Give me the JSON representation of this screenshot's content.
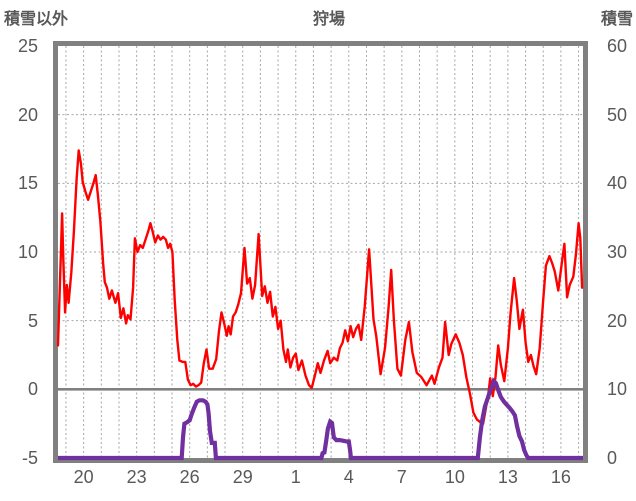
{
  "header": {
    "left_axis_title": "積雪以外",
    "chart_title": "狩場",
    "right_axis_title": "積雪"
  },
  "colors": {
    "temperature_line": "#FF0000",
    "snow_line": "#7030A0",
    "frame": "#808080",
    "zero_line": "#808080",
    "gridline": "#A6A6A6",
    "label_text": "#595959",
    "background": "#FFFFFF"
  },
  "chart_data": {
    "type": "line",
    "title": "狩場",
    "left_axis": {
      "label": "積雪以外",
      "min": -5,
      "max": 25,
      "tick_step": 5,
      "ticks": [
        "25",
        "20",
        "15",
        "10",
        "5",
        "0",
        "-5"
      ],
      "tick_values": [
        25,
        20,
        15,
        10,
        5,
        0,
        -5
      ]
    },
    "right_axis": {
      "label": "積雪",
      "min": 0,
      "max": 60,
      "tick_step": 10,
      "ticks": [
        "60",
        "50",
        "40",
        "30",
        "20",
        "10",
        "0"
      ],
      "tick_values": [
        60,
        50,
        40,
        30,
        20,
        10,
        0
      ]
    },
    "x_axis": {
      "day_start": 18.55,
      "day_end": 48.25,
      "gridline_every_days": 1,
      "tick_labels": [
        "20",
        "23",
        "26",
        "29",
        "1",
        "4",
        "7",
        "10",
        "13",
        "16"
      ],
      "tick_day_positions": [
        20,
        23,
        26,
        29,
        32,
        35,
        38,
        41,
        44,
        47
      ]
    },
    "grid": {
      "vertical": true,
      "horizontal": true,
      "style": "dashed"
    },
    "zero_line_left_value": 0,
    "series": [
      {
        "name": "積雪以外",
        "axis": "left",
        "color": "#FF0000",
        "stroke_width": 2.4,
        "points": [
          [
            18.55,
            3.2
          ],
          [
            18.62,
            6.0
          ],
          [
            18.7,
            9.5
          ],
          [
            18.78,
            12.8
          ],
          [
            18.85,
            9.5
          ],
          [
            18.95,
            5.6
          ],
          [
            19.05,
            7.6
          ],
          [
            19.15,
            6.3
          ],
          [
            19.3,
            8.5
          ],
          [
            19.45,
            11.5
          ],
          [
            19.6,
            15.3
          ],
          [
            19.72,
            17.4
          ],
          [
            19.85,
            16.4
          ],
          [
            19.95,
            15.1
          ],
          [
            20.1,
            14.4
          ],
          [
            20.25,
            13.8
          ],
          [
            20.4,
            14.4
          ],
          [
            20.55,
            15.0
          ],
          [
            20.68,
            15.6
          ],
          [
            20.8,
            14.2
          ],
          [
            20.95,
            12.2
          ],
          [
            21.1,
            9.2
          ],
          [
            21.2,
            7.8
          ],
          [
            21.32,
            7.4
          ],
          [
            21.45,
            6.6
          ],
          [
            21.6,
            7.2
          ],
          [
            21.8,
            6.3
          ],
          [
            21.95,
            7.0
          ],
          [
            22.1,
            5.2
          ],
          [
            22.25,
            5.9
          ],
          [
            22.4,
            4.8
          ],
          [
            22.5,
            5.4
          ],
          [
            22.65,
            5.1
          ],
          [
            22.8,
            7.4
          ],
          [
            22.9,
            11.0
          ],
          [
            23.05,
            10.0
          ],
          [
            23.2,
            10.5
          ],
          [
            23.35,
            10.3
          ],
          [
            23.5,
            10.9
          ],
          [
            23.65,
            11.5
          ],
          [
            23.78,
            12.1
          ],
          [
            23.9,
            11.5
          ],
          [
            24.05,
            10.7
          ],
          [
            24.2,
            11.2
          ],
          [
            24.35,
            10.9
          ],
          [
            24.5,
            11.1
          ],
          [
            24.65,
            10.9
          ],
          [
            24.78,
            10.3
          ],
          [
            24.9,
            10.6
          ],
          [
            25.02,
            10.0
          ],
          [
            25.15,
            6.5
          ],
          [
            25.3,
            3.6
          ],
          [
            25.42,
            2.1
          ],
          [
            25.6,
            2.0
          ],
          [
            25.75,
            2.0
          ],
          [
            25.9,
            0.7
          ],
          [
            26.05,
            0.3
          ],
          [
            26.2,
            0.4
          ],
          [
            26.35,
            0.2
          ],
          [
            26.5,
            0.3
          ],
          [
            26.65,
            0.5
          ],
          [
            26.8,
            1.9
          ],
          [
            26.95,
            2.9
          ],
          [
            27.1,
            1.5
          ],
          [
            27.3,
            1.5
          ],
          [
            27.5,
            2.2
          ],
          [
            27.65,
            4.2
          ],
          [
            27.8,
            5.6
          ],
          [
            27.95,
            4.8
          ],
          [
            28.1,
            3.9
          ],
          [
            28.2,
            4.6
          ],
          [
            28.32,
            4.0
          ],
          [
            28.45,
            5.3
          ],
          [
            28.6,
            5.6
          ],
          [
            28.75,
            6.2
          ],
          [
            28.9,
            7.0
          ],
          [
            29.1,
            10.3
          ],
          [
            29.25,
            7.7
          ],
          [
            29.4,
            8.1
          ],
          [
            29.55,
            6.6
          ],
          [
            29.7,
            7.6
          ],
          [
            29.9,
            11.3
          ],
          [
            30.1,
            6.8
          ],
          [
            30.25,
            7.5
          ],
          [
            30.4,
            6.3
          ],
          [
            30.55,
            7.1
          ],
          [
            30.7,
            5.3
          ],
          [
            30.85,
            6.0
          ],
          [
            31.0,
            4.4
          ],
          [
            31.15,
            5.0
          ],
          [
            31.3,
            2.9
          ],
          [
            31.45,
            2.0
          ],
          [
            31.55,
            2.9
          ],
          [
            31.7,
            1.6
          ],
          [
            31.85,
            2.3
          ],
          [
            32.0,
            2.6
          ],
          [
            32.15,
            1.4
          ],
          [
            32.35,
            2.1
          ],
          [
            32.55,
            1.0
          ],
          [
            32.75,
            0.3
          ],
          [
            32.9,
            0.1
          ],
          [
            33.1,
            1.1
          ],
          [
            33.25,
            1.9
          ],
          [
            33.4,
            1.2
          ],
          [
            33.6,
            2.1
          ],
          [
            33.8,
            2.8
          ],
          [
            33.95,
            1.9
          ],
          [
            34.15,
            2.3
          ],
          [
            34.35,
            2.1
          ],
          [
            34.5,
            3.0
          ],
          [
            34.65,
            3.4
          ],
          [
            34.8,
            4.3
          ],
          [
            34.95,
            3.5
          ],
          [
            35.1,
            4.6
          ],
          [
            35.25,
            3.8
          ],
          [
            35.4,
            4.4
          ],
          [
            35.55,
            4.7
          ],
          [
            35.7,
            3.6
          ],
          [
            35.9,
            6.0
          ],
          [
            36.15,
            10.2
          ],
          [
            36.4,
            5.1
          ],
          [
            36.55,
            3.9
          ],
          [
            36.8,
            1.1
          ],
          [
            37.05,
            3.0
          ],
          [
            37.25,
            6.0
          ],
          [
            37.4,
            8.7
          ],
          [
            37.55,
            5.0
          ],
          [
            37.75,
            1.5
          ],
          [
            37.95,
            1.0
          ],
          [
            38.2,
            3.6
          ],
          [
            38.4,
            4.9
          ],
          [
            38.6,
            2.7
          ],
          [
            38.85,
            1.2
          ],
          [
            39.1,
            0.9
          ],
          [
            39.4,
            0.3
          ],
          [
            39.7,
            1.0
          ],
          [
            39.85,
            0.4
          ],
          [
            40.1,
            1.6
          ],
          [
            40.3,
            2.3
          ],
          [
            40.45,
            4.9
          ],
          [
            40.65,
            2.5
          ],
          [
            40.8,
            3.3
          ],
          [
            41.05,
            4.0
          ],
          [
            41.25,
            3.4
          ],
          [
            41.45,
            2.5
          ],
          [
            41.65,
            0.9
          ],
          [
            41.85,
            -0.3
          ],
          [
            42.05,
            -1.7
          ],
          [
            42.25,
            -2.2
          ],
          [
            42.45,
            -2.4
          ],
          [
            42.6,
            -2.5
          ],
          [
            42.75,
            -1.4
          ],
          [
            42.9,
            -0.3
          ],
          [
            43.0,
            0.8
          ],
          [
            43.15,
            -0.5
          ],
          [
            43.3,
            0.9
          ],
          [
            43.45,
            3.2
          ],
          [
            43.6,
            1.8
          ],
          [
            43.8,
            0.6
          ],
          [
            44.0,
            3.0
          ],
          [
            44.15,
            5.5
          ],
          [
            44.35,
            8.1
          ],
          [
            44.5,
            6.5
          ],
          [
            44.65,
            4.4
          ],
          [
            44.85,
            5.8
          ],
          [
            45.0,
            3.4
          ],
          [
            45.15,
            2.0
          ],
          [
            45.3,
            2.5
          ],
          [
            45.45,
            1.7
          ],
          [
            45.6,
            1.1
          ],
          [
            45.8,
            3.0
          ],
          [
            46.0,
            6.5
          ],
          [
            46.15,
            9.0
          ],
          [
            46.35,
            9.7
          ],
          [
            46.5,
            9.2
          ],
          [
            46.65,
            8.6
          ],
          [
            46.85,
            7.2
          ],
          [
            47.05,
            9.2
          ],
          [
            47.2,
            10.6
          ],
          [
            47.35,
            6.7
          ],
          [
            47.5,
            7.6
          ],
          [
            47.7,
            8.2
          ],
          [
            47.85,
            9.8
          ],
          [
            48.0,
            12.1
          ],
          [
            48.1,
            11.0
          ],
          [
            48.2,
            7.4
          ]
        ]
      },
      {
        "name": "積雪",
        "axis": "right",
        "color": "#7030A0",
        "stroke_width": 4.2,
        "points": [
          [
            18.55,
            0
          ],
          [
            25.55,
            0
          ],
          [
            25.62,
            3.0
          ],
          [
            25.7,
            5.0
          ],
          [
            25.85,
            5.2
          ],
          [
            26.0,
            5.5
          ],
          [
            26.1,
            6.3
          ],
          [
            26.25,
            7.3
          ],
          [
            26.4,
            8.2
          ],
          [
            26.55,
            8.4
          ],
          [
            26.75,
            8.4
          ],
          [
            26.9,
            8.2
          ],
          [
            27.0,
            7.8
          ],
          [
            27.07,
            6.5
          ],
          [
            27.15,
            3.9
          ],
          [
            27.25,
            2.2
          ],
          [
            27.42,
            2.2
          ],
          [
            27.48,
            0
          ],
          [
            33.45,
            0
          ],
          [
            33.52,
            0.7
          ],
          [
            33.62,
            0.8
          ],
          [
            33.72,
            2.5
          ],
          [
            33.82,
            4.3
          ],
          [
            33.95,
            5.3
          ],
          [
            34.05,
            5.1
          ],
          [
            34.15,
            3.0
          ],
          [
            34.3,
            2.6
          ],
          [
            34.5,
            2.6
          ],
          [
            34.7,
            2.5
          ],
          [
            34.9,
            2.4
          ],
          [
            35.0,
            2.4
          ],
          [
            35.08,
            1.0
          ],
          [
            35.12,
            0
          ],
          [
            42.3,
            0
          ],
          [
            42.42,
            3.0
          ],
          [
            42.55,
            5.5
          ],
          [
            42.7,
            7.5
          ],
          [
            42.85,
            8.6
          ],
          [
            43.0,
            9.8
          ],
          [
            43.1,
            10.4
          ],
          [
            43.2,
            11.2
          ],
          [
            43.32,
            10.9
          ],
          [
            43.45,
            9.9
          ],
          [
            43.6,
            8.9
          ],
          [
            43.78,
            8.2
          ],
          [
            43.95,
            7.7
          ],
          [
            44.1,
            7.3
          ],
          [
            44.25,
            6.8
          ],
          [
            44.4,
            6.2
          ],
          [
            44.52,
            4.6
          ],
          [
            44.65,
            3.2
          ],
          [
            44.8,
            2.4
          ],
          [
            44.92,
            1.2
          ],
          [
            45.05,
            0.4
          ],
          [
            45.15,
            0
          ],
          [
            48.25,
            0
          ]
        ]
      }
    ],
    "legend": {
      "visible": false
    }
  }
}
